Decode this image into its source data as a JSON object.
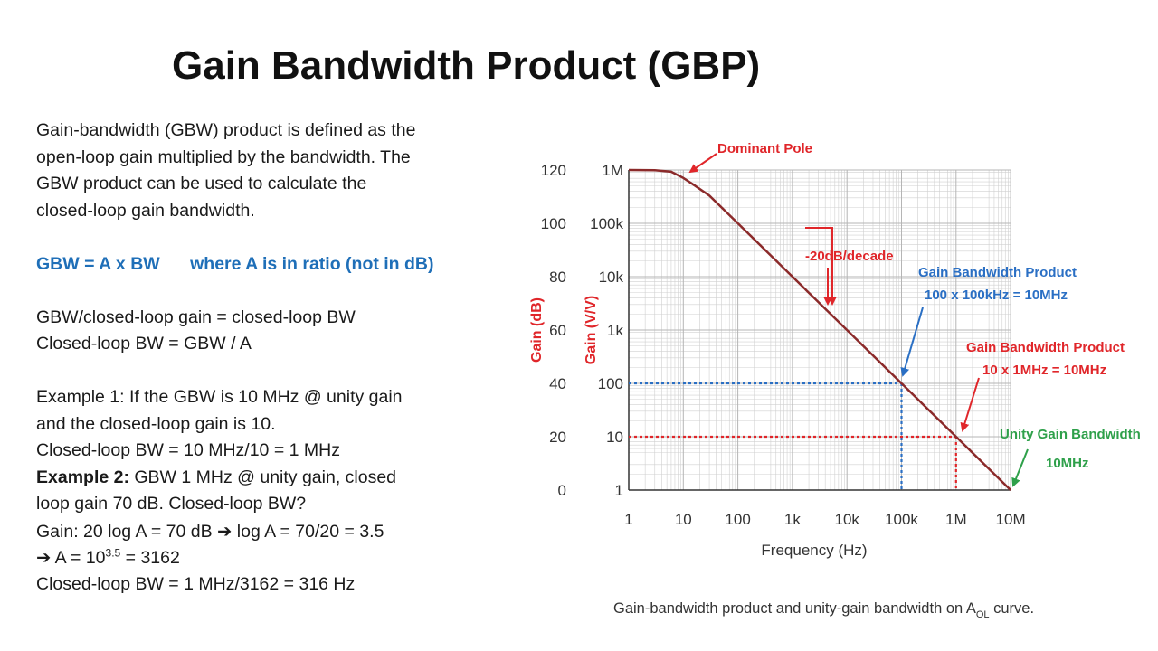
{
  "slide": {
    "title": "Gain Bandwidth Product (GBP)",
    "p1": [
      "Gain-bandwidth (GBW) product is defined as the",
      "open-loop gain multiplied by the bandwidth. The",
      "GBW product can be used to calculate the",
      "closed-loop gain bandwidth."
    ],
    "formula_left": "GBW = A x BW",
    "formula_right": "where A is in ratio (not in dB)",
    "l_closed1": "GBW/closed-loop gain = closed-loop BW",
    "l_closed2": "Closed-loop BW = GBW / A",
    "ex1_a": "Example 1: If the GBW is 10 MHz @ unity gain",
    "ex1_b": "and the closed-loop gain is 10.",
    "ex1_c": "Closed-loop BW = 10 MHz/10 = 1 MHz",
    "ex2_label": "Example 2:",
    "ex2_a": " GBW 1 MHz @ unity gain, closed",
    "ex2_b": "loop gain 70 dB. Closed-loop BW?",
    "gain_a": "Gain: 20 log A = 70 dB ",
    "gain_b": " log A = 70/20 = 3.5",
    "arrow": "➔",
    "a_pre": " A = 10",
    "a_exp": "3.5",
    "a_post": " = 3162",
    "closed_bw": "Closed-loop BW = 1 MHz/3162 = 316 Hz"
  },
  "chart_data": {
    "type": "line",
    "xlabel": "Frequency (Hz)",
    "ylabel_db": "Gain (dB)",
    "ylabel_vv": "Gain (V/V)",
    "x_ticks": [
      "1",
      "10",
      "100",
      "1k",
      "10k",
      "100k",
      "1M",
      "10M"
    ],
    "y_ticks_vv": [
      "1",
      "10",
      "100",
      "1k",
      "10k",
      "100k",
      "1M"
    ],
    "y_ticks_db": [
      "0",
      "20",
      "40",
      "60",
      "80",
      "100",
      "120"
    ],
    "xlim": [
      1,
      10000000
    ],
    "ylim": [
      1,
      1000000
    ],
    "x_scale": "log",
    "y_scale": "log",
    "grid": true,
    "curve": {
      "x": [
        1,
        3,
        6,
        10,
        15,
        30,
        100,
        1000,
        10000,
        100000,
        1000000,
        10000000
      ],
      "y": [
        1000000,
        990000,
        930000,
        710000,
        540000,
        330000,
        100000,
        10000,
        1000,
        100,
        10,
        1
      ]
    },
    "markers": [
      {
        "name": "gbp-100",
        "x": 100000,
        "y": 100,
        "color": "#2a6fc4"
      },
      {
        "name": "gbp-10",
        "x": 1000000,
        "y": 10,
        "color": "#e0262a"
      }
    ],
    "annotations": {
      "dominant_pole": "Dominant Pole",
      "slope": "-20dB/decade",
      "gbp1_title": "Gain Bandwidth Product",
      "gbp1_value": "100 x 100kHz = 10MHz",
      "gbp2_title": "Gain Bandwidth Product",
      "gbp2_value": "10 x 1MHz = 10MHz",
      "ugb_title": "Unity Gain Bandwidth",
      "ugb_value": "10MHz"
    },
    "caption_pre": "Gain-bandwidth product and unity-gain bandwidth on A",
    "caption_sub": "OL",
    "caption_post": " curve.",
    "colors": {
      "curve": "#8b2a2a",
      "red": "#e0262a",
      "blue": "#2a6fc4",
      "green": "#2ea04a",
      "grid": "#d0d0d0"
    }
  }
}
